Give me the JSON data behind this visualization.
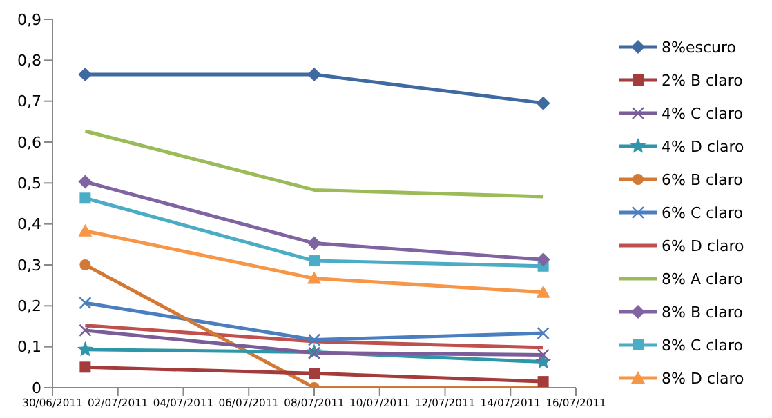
{
  "chart_data": {
    "type": "line",
    "x": [
      "2011-07-01",
      "2011-07-08",
      "2011-07-15"
    ],
    "xlim": [
      "2011-06-30",
      "2011-07-16"
    ],
    "xticks": [
      {
        "value": "2011-06-30",
        "label": "30/06/2011"
      },
      {
        "value": "2011-07-02",
        "label": "02/07/2011"
      },
      {
        "value": "2011-07-04",
        "label": "04/07/2011"
      },
      {
        "value": "2011-07-06",
        "label": "06/07/2011"
      },
      {
        "value": "2011-07-08",
        "label": "08/07/2011"
      },
      {
        "value": "2011-07-10",
        "label": "10/07/2011"
      },
      {
        "value": "2011-07-12",
        "label": "12/07/2011"
      },
      {
        "value": "2011-07-14",
        "label": "14/07/2011"
      },
      {
        "value": "2011-07-16",
        "label": "16/07/2011"
      }
    ],
    "ylim": [
      0,
      0.9
    ],
    "yticks": [
      0,
      {
        "value": 0.1,
        "label": "0,1"
      },
      {
        "value": 0.2,
        "label": "0,2"
      },
      {
        "value": 0.3,
        "label": "0,3"
      },
      {
        "value": 0.4,
        "label": "0,4"
      },
      {
        "value": 0.5,
        "label": "0,5"
      },
      {
        "value": 0.6,
        "label": "0,6"
      },
      {
        "value": 0.7,
        "label": "0,7"
      },
      {
        "value": 0.8,
        "label": "0,8"
      },
      {
        "value": 0.9,
        "label": "0,9"
      }
    ],
    "grid": false,
    "legend": "right",
    "series": [
      {
        "name": "8%escuro",
        "color": "#3f6aa0",
        "marker": "diamond",
        "values": [
          0.765,
          0.765,
          0.695
        ]
      },
      {
        "name": "2% B claro",
        "color": "#a33c3a",
        "marker": "square",
        "values": [
          0.05,
          0.035,
          0.015
        ]
      },
      {
        "name": "4% C claro",
        "color": "#7a5c99",
        "marker": "cross",
        "values": [
          0.14,
          0.085,
          0.08
        ]
      },
      {
        "name": "4% D claro",
        "color": "#2f95a8",
        "marker": "star",
        "values": [
          0.093,
          0.087,
          0.063
        ]
      },
      {
        "name": "6% B claro",
        "color": "#d27a35",
        "marker": "circle",
        "values": [
          0.3,
          0,
          0
        ]
      },
      {
        "name": "6% C claro",
        "color": "#4a7ebf",
        "marker": "cross",
        "values": [
          0.207,
          0.117,
          0.133
        ]
      },
      {
        "name": "6% D claro",
        "color": "#c0504d",
        "marker": "none",
        "values": [
          0.152,
          0.113,
          0.098
        ]
      },
      {
        "name": "8% A claro",
        "color": "#9bbb59",
        "marker": "none",
        "values": [
          0.627,
          0.483,
          0.467
        ]
      },
      {
        "name": "8% B claro",
        "color": "#8064a2",
        "marker": "diamond",
        "values": [
          0.503,
          0.353,
          0.313
        ]
      },
      {
        "name": "8% C claro",
        "color": "#4bacc6",
        "marker": "square",
        "values": [
          0.463,
          0.31,
          0.297
        ]
      },
      {
        "name": "8% D claro",
        "color": "#f79646",
        "marker": "triangle",
        "values": [
          0.383,
          0.267,
          0.233
        ]
      }
    ]
  }
}
